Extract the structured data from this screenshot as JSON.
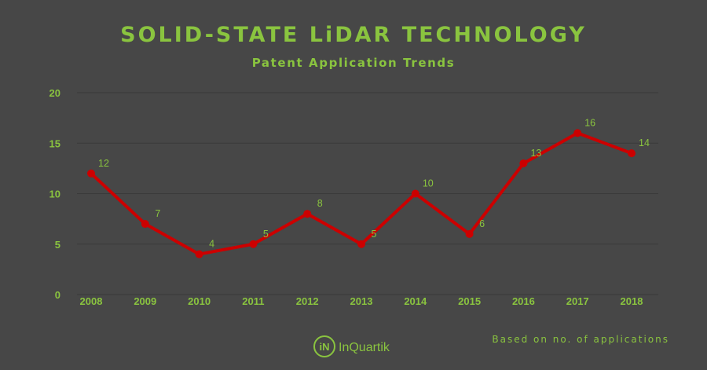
{
  "chart_data": {
    "type": "line",
    "title": "SOLID-STATE LiDAR TECHNOLOGY",
    "subtitle": "Patent Application Trends",
    "categories": [
      "2008",
      "2009",
      "2010",
      "2011",
      "2012",
      "2013",
      "2014",
      "2015",
      "2016",
      "2017",
      "2018"
    ],
    "series": [
      {
        "values": [
          12,
          7,
          4,
          5,
          8,
          5,
          10,
          6,
          13,
          16,
          14
        ]
      }
    ],
    "y_ticks": [
      "0",
      "5",
      "10",
      "15",
      "20"
    ],
    "ylim": [
      0,
      20
    ],
    "grid": true,
    "colors": {
      "background": "#474747",
      "line": "#cc0000",
      "text": "#8ac43f",
      "grid": "#3a3a3a"
    }
  },
  "footnote": "Based on no. of applications",
  "brand": {
    "logo_text": "iN",
    "name": "InQuartik"
  }
}
